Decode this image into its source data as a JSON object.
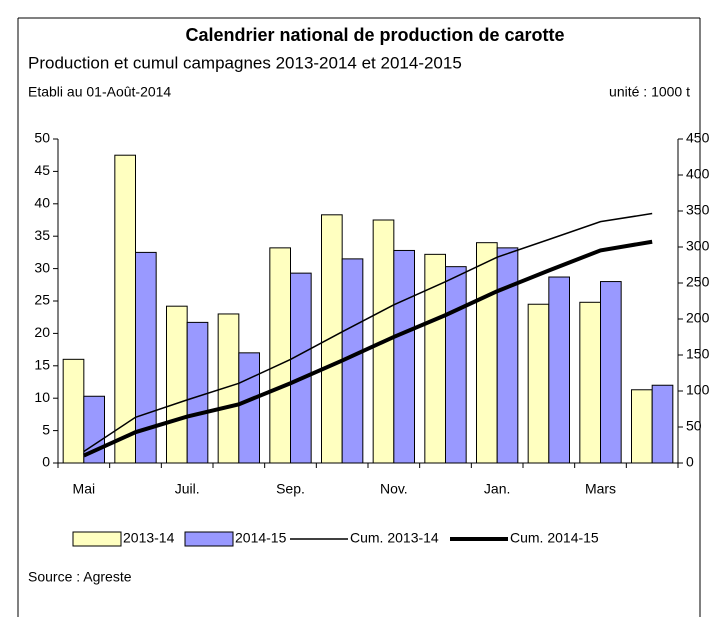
{
  "chart_data": {
    "type": "bar",
    "title": "Calendrier national de production de carotte",
    "subtitle": "Production et cumul campagnes 2013-2014 et 2014-2015",
    "note_left": "Etabli au 01-Août-2014",
    "note_right": "unité : 1000 t",
    "source": "Source : Agreste",
    "categories": [
      "Mai",
      null,
      "Juil.",
      null,
      "Sep.",
      null,
      "Nov.",
      null,
      "Jan.",
      null,
      "Mars",
      null
    ],
    "series": [
      {
        "name": "2013-14",
        "color": "#ffffc0",
        "type": "bar",
        "values": [
          16,
          47.5,
          24.2,
          23,
          33.2,
          38.3,
          37.5,
          32.2,
          34,
          24.5,
          24.8,
          11.3
        ]
      },
      {
        "name": "2014-15",
        "color": "#9999ff",
        "type": "bar",
        "values": [
          10.3,
          32.5,
          21.7,
          17,
          29.3,
          31.5,
          32.8,
          30.3,
          33.2,
          28.7,
          28,
          12
        ]
      },
      {
        "name": "Cum. 2013-14",
        "color": "#000000",
        "type": "line",
        "width": 1.5,
        "axis": "y2",
        "values": [
          16,
          63.5,
          87.7,
          110.7,
          143.9,
          182.2,
          219.7,
          251.9,
          285.9,
          310.4,
          335.2,
          346.5
        ]
      },
      {
        "name": "Cum. 2014-15",
        "color": "#000000",
        "type": "line",
        "width": 4,
        "axis": "y2",
        "values": [
          10.3,
          42.8,
          64.5,
          81.5,
          110.8,
          142.3,
          175.1,
          205.4,
          238.6,
          267.3,
          295.3,
          307.3
        ]
      }
    ],
    "ylim": [
      0,
      50
    ],
    "yticks": [
      0,
      5,
      10,
      15,
      20,
      25,
      30,
      35,
      40,
      45,
      50
    ],
    "y2lim": [
      0,
      450
    ],
    "y2ticks": [
      0,
      50,
      100,
      150,
      200,
      250,
      300,
      350,
      400,
      450
    ],
    "grid": false
  }
}
